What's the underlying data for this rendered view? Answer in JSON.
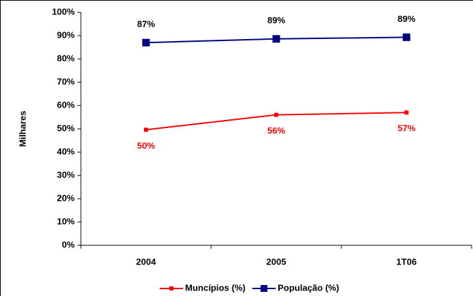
{
  "chart_data": {
    "type": "line",
    "y_label": "Milhares",
    "categories": [
      "2004",
      "2005",
      "1T06"
    ],
    "series": [
      {
        "name": "Muncípios (%)",
        "color": "#ff0000",
        "values": [
          49.6,
          56,
          57
        ],
        "value_labels": [
          "50%",
          "56%",
          "57%"
        ]
      },
      {
        "name": "População (%)",
        "color": "#000080",
        "values": [
          87,
          88.6,
          89.3
        ],
        "value_labels": [
          "87%",
          "89%",
          "89%"
        ]
      }
    ],
    "ylim": [
      0,
      100
    ],
    "yticks": [
      {
        "value": 0,
        "label": "0%"
      },
      {
        "value": 10,
        "label": "10%"
      },
      {
        "value": 20,
        "label": "20%"
      },
      {
        "value": 30,
        "label": "30%"
      },
      {
        "value": 40,
        "label": "40%"
      },
      {
        "value": 50,
        "label": "50%"
      },
      {
        "value": 60,
        "label": "60%"
      },
      {
        "value": 70,
        "label": "70%"
      },
      {
        "value": 80,
        "label": "80%"
      },
      {
        "value": 90,
        "label": "90%"
      },
      {
        "value": 100,
        "label": "100%"
      }
    ],
    "legend": "bottom"
  }
}
